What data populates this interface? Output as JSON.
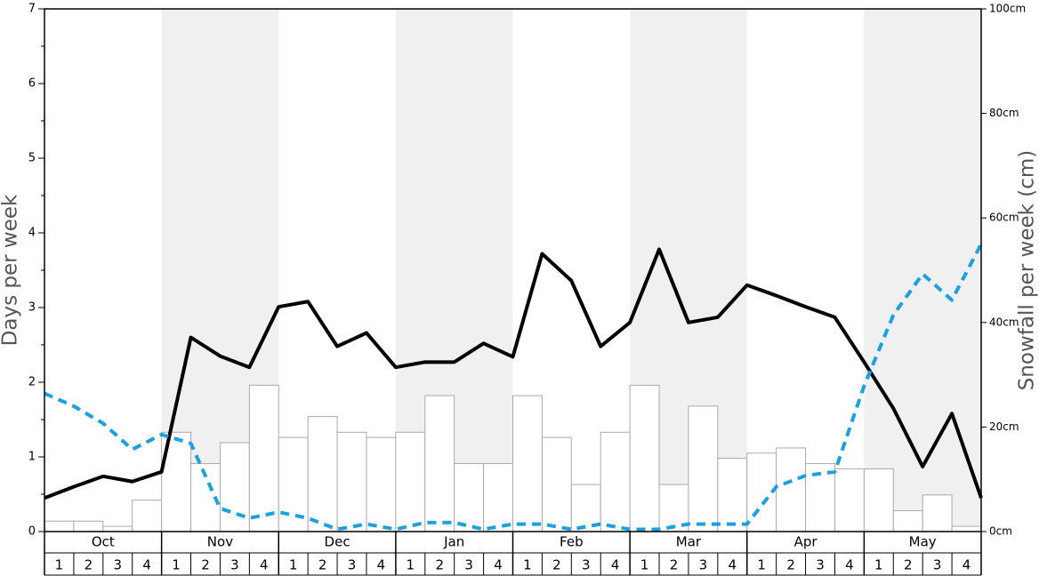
{
  "chart_data": {
    "type": "bar",
    "months": [
      "Oct",
      "Nov",
      "Dec",
      "Jan",
      "Feb",
      "Mar",
      "Apr",
      "May"
    ],
    "categories": [
      "1",
      "2",
      "3",
      "4",
      "1",
      "2",
      "3",
      "4",
      "1",
      "2",
      "3",
      "4",
      "1",
      "2",
      "3",
      "4",
      "1",
      "2",
      "3",
      "4",
      "1",
      "2",
      "3",
      "4",
      "1",
      "2",
      "3",
      "4",
      "1",
      "2",
      "3",
      "4"
    ],
    "band_color": "#f0f0f0",
    "ylabel": "Days per week",
    "y2label": "Snowfall per week (cm)",
    "ylim": [
      0,
      7
    ],
    "yticks": [
      0,
      1,
      2,
      3,
      4,
      5,
      6,
      7
    ],
    "yminor": [
      0.5,
      1.5,
      2.5,
      3.5,
      4.5,
      5.5,
      6.5
    ],
    "y2lim": [
      0,
      100
    ],
    "y2ticks": [
      {
        "value": 0,
        "label": "0cm"
      },
      {
        "value": 20,
        "label": "20cm"
      },
      {
        "value": 40,
        "label": "40cm"
      },
      {
        "value": 60,
        "label": "60cm"
      },
      {
        "value": 80,
        "label": "80cm"
      },
      {
        "value": 100,
        "label": "100cm"
      }
    ],
    "xlim": [
      0,
      32
    ],
    "series": [
      {
        "type": "bar",
        "axis": "y2",
        "color": "#ffffff",
        "edge": "#aaaaaa",
        "values": [
          2,
          2,
          1,
          6,
          19,
          13,
          17,
          28,
          18,
          22,
          19,
          18,
          19,
          26,
          13,
          13,
          26,
          18,
          9,
          19,
          28,
          9,
          24,
          14,
          15,
          16,
          13,
          12,
          12,
          4,
          7,
          1
        ]
      },
      {
        "type": "line",
        "color": "#000000",
        "x": [
          0,
          1,
          2,
          3,
          4,
          5,
          6,
          7,
          8,
          9,
          10,
          11,
          12,
          13,
          14,
          15,
          16,
          17,
          18,
          19,
          20,
          21,
          22,
          23,
          24,
          25,
          26,
          27,
          28,
          29,
          30,
          31,
          32
        ],
        "values": [
          0.45,
          0.6,
          0.74,
          0.67,
          0.8,
          2.6,
          2.35,
          2.2,
          3.01,
          3.08,
          2.48,
          2.66,
          2.2,
          2.27,
          2.27,
          2.52,
          2.34,
          3.72,
          3.36,
          2.48,
          2.8,
          3.78,
          2.8,
          2.87,
          3.3,
          3.16,
          3.01,
          2.87,
          2.27,
          1.65,
          0.87,
          1.58,
          0.45
        ]
      },
      {
        "type": "line",
        "color": "#1ba1e2",
        "dashed": true,
        "x": [
          0,
          1,
          2,
          3,
          4,
          5,
          6,
          7,
          8,
          9,
          10,
          11,
          12,
          13,
          14,
          15,
          16,
          17,
          18,
          19,
          20,
          21,
          22,
          23,
          24,
          25,
          26,
          27,
          28,
          29,
          30,
          31,
          32
        ],
        "values": [
          1.85,
          1.68,
          1.45,
          1.1,
          1.3,
          1.18,
          0.31,
          0.18,
          0.26,
          0.18,
          0.03,
          0.1,
          0.03,
          0.12,
          0.12,
          0.03,
          0.1,
          0.1,
          0.03,
          0.1,
          0.03,
          0.03,
          0.1,
          0.1,
          0.1,
          0.6,
          0.75,
          0.8,
          1.95,
          2.9,
          3.45,
          3.1,
          3.85
        ]
      }
    ]
  }
}
